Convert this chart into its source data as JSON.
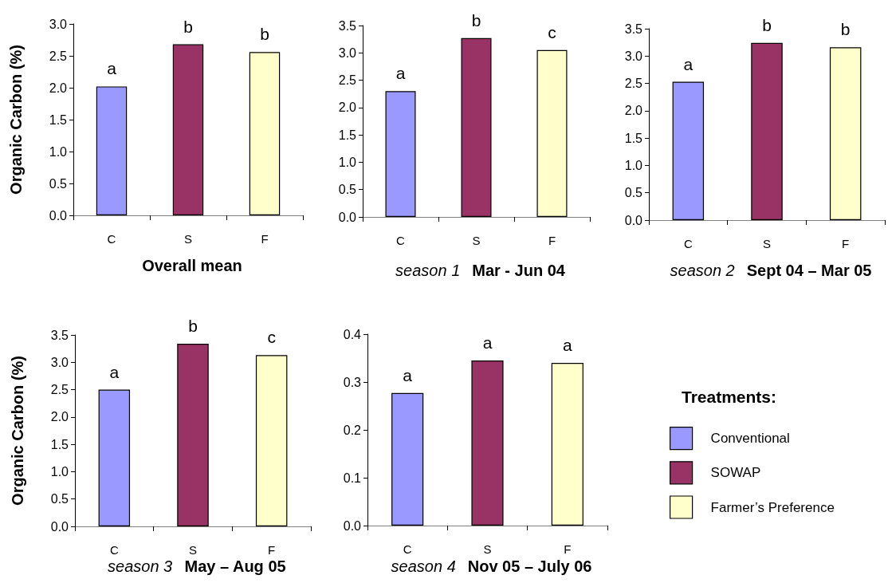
{
  "chart_data": [
    {
      "type": "bar",
      "title": "Overall mean",
      "ylabel": "Organic Carbon (%)",
      "categories": [
        "C",
        "S",
        "F"
      ],
      "values": [
        2.02,
        2.68,
        2.56
      ],
      "colors": [
        "#9999ff",
        "#993366",
        "#ffffcc"
      ],
      "ylim": [
        0,
        3
      ],
      "yticks": [
        {
          "value": 0,
          "label": "0.0"
        },
        {
          "value": 0.5,
          "label": "0.5"
        },
        {
          "value": 1,
          "label": "1.0"
        },
        {
          "value": 1.5,
          "label": "1.5"
        },
        {
          "value": 2,
          "label": "2.0"
        },
        {
          "value": 2.5,
          "label": "2.5"
        },
        {
          "value": 3,
          "label": "3.0"
        }
      ],
      "grid": false,
      "legend": false,
      "annotations": [
        {
          "text": "a",
          "x": "C",
          "y": 2.02
        },
        {
          "text": "b",
          "x": "S",
          "y": 2.68
        },
        {
          "text": "b",
          "x": "F",
          "y": 2.56
        }
      ]
    },
    {
      "type": "bar",
      "title": "Mar - Jun 04",
      "subtitle": "season 1",
      "categories": [
        "C",
        "S",
        "F"
      ],
      "values": [
        2.3,
        3.27,
        3.05
      ],
      "colors": [
        "#9999ff",
        "#993366",
        "#ffffcc"
      ],
      "ylim": [
        0,
        3.5
      ],
      "yticks": [
        {
          "value": 0,
          "label": "0.0"
        },
        {
          "value": 0.5,
          "label": "0.5"
        },
        {
          "value": 1,
          "label": "1.0"
        },
        {
          "value": 1.5,
          "label": "1.5"
        },
        {
          "value": 2,
          "label": "2.0"
        },
        {
          "value": 2.5,
          "label": "2.5"
        },
        {
          "value": 3,
          "label": "3.0"
        },
        {
          "value": 3.5,
          "label": "3.5"
        }
      ],
      "grid": false,
      "legend": false,
      "annotations": [
        {
          "text": "a",
          "x": "C",
          "y": 2.3
        },
        {
          "text": "b",
          "x": "S",
          "y": 3.27
        },
        {
          "text": "c",
          "x": "F",
          "y": 3.05
        }
      ]
    },
    {
      "type": "bar",
      "title": "Sept 04 – Mar 05",
      "subtitle": "season 2",
      "categories": [
        "C",
        "S",
        "F"
      ],
      "values": [
        2.53,
        3.24,
        3.16
      ],
      "colors": [
        "#9999ff",
        "#993366",
        "#ffffcc"
      ],
      "ylim": [
        0,
        3.5
      ],
      "yticks": [
        {
          "value": 0,
          "label": "0.0"
        },
        {
          "value": 0.5,
          "label": "0.5"
        },
        {
          "value": 1,
          "label": "1.0"
        },
        {
          "value": 1.5,
          "label": "1.5"
        },
        {
          "value": 2,
          "label": "2.0"
        },
        {
          "value": 2.5,
          "label": "2.5"
        },
        {
          "value": 3,
          "label": "3.0"
        },
        {
          "value": 3.5,
          "label": "3.5"
        }
      ],
      "grid": false,
      "legend": false,
      "annotations": [
        {
          "text": "a",
          "x": "C",
          "y": 2.53
        },
        {
          "text": "b",
          "x": "S",
          "y": 3.24
        },
        {
          "text": "b",
          "x": "F",
          "y": 3.16
        }
      ]
    },
    {
      "type": "bar",
      "title": "May – Aug 05",
      "subtitle": "season 3",
      "ylabel": "Organic Carbon (%)",
      "categories": [
        "C",
        "S",
        "F"
      ],
      "values": [
        2.5,
        3.34,
        3.13
      ],
      "colors": [
        "#9999ff",
        "#993366",
        "#ffffcc"
      ],
      "ylim": [
        0,
        3.5
      ],
      "yticks": [
        {
          "value": 0,
          "label": "0.0"
        },
        {
          "value": 0.5,
          "label": "0.5"
        },
        {
          "value": 1,
          "label": "1.0"
        },
        {
          "value": 1.5,
          "label": "1.5"
        },
        {
          "value": 2,
          "label": "2.0"
        },
        {
          "value": 2.5,
          "label": "2.5"
        },
        {
          "value": 3,
          "label": "3.0"
        },
        {
          "value": 3.5,
          "label": "3.5"
        }
      ],
      "grid": false,
      "legend": false,
      "annotations": [
        {
          "text": "a",
          "x": "C",
          "y": 2.5
        },
        {
          "text": "b",
          "x": "S",
          "y": 3.34
        },
        {
          "text": "c",
          "x": "F",
          "y": 3.13
        }
      ]
    },
    {
      "type": "bar",
      "title": "Nov 05 – July 06",
      "subtitle": "season 4",
      "categories": [
        "C",
        "S",
        "F"
      ],
      "stacked": true,
      "series": [
        {
          "name": "Conventional",
          "color": "#9999ff",
          "values": [
            0.277,
            null,
            null
          ]
        },
        {
          "name": "SOWAP",
          "color": "#993366",
          "values": [
            null,
            0.345,
            null
          ]
        },
        {
          "name": "Farmer’s Preference",
          "color": "#ffffcc",
          "values": [
            null,
            null,
            0.34
          ]
        }
      ],
      "ylim": [
        0,
        0.4
      ],
      "yticks": [
        {
          "value": 0,
          "label": "0.0"
        },
        {
          "value": 0.1,
          "label": "0.1"
        },
        {
          "value": 0.2,
          "label": "0.2"
        },
        {
          "value": 0.3,
          "label": "0.3"
        },
        {
          "value": 0.4,
          "label": "0.4"
        }
      ],
      "grid": false,
      "legend": "right",
      "legend_title": "Treatments:",
      "annotations": [
        {
          "text": "a",
          "x": "C",
          "y": 0.277
        },
        {
          "text": "a",
          "x": "S",
          "y": 0.345
        },
        {
          "text": "a",
          "x": "F",
          "y": 0.34
        }
      ]
    }
  ]
}
